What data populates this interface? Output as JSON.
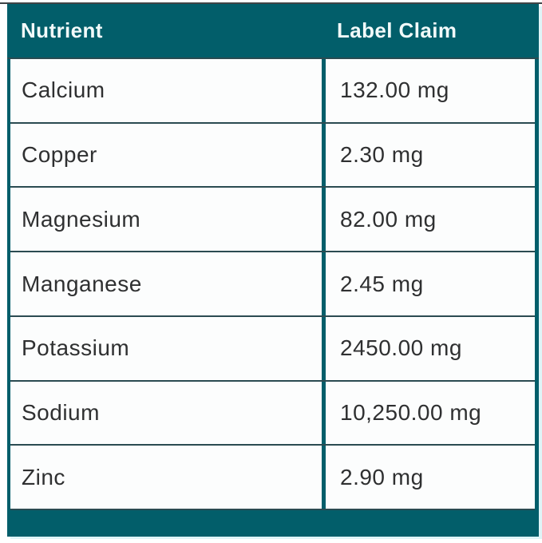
{
  "chart_data": {
    "type": "table",
    "columns": [
      "Nutrient",
      "Label Claim"
    ],
    "rows": [
      [
        "Calcium",
        "132.00 mg"
      ],
      [
        "Copper",
        "2.30 mg"
      ],
      [
        "Magnesium",
        "82.00 mg"
      ],
      [
        "Manganese",
        "2.45 mg"
      ],
      [
        "Potassium",
        "2450.00 mg"
      ],
      [
        "Sodium",
        "10,250.00 mg"
      ],
      [
        "Zinc",
        "2.90 mg"
      ]
    ],
    "units": "mg",
    "layout_hints": {
      "header_position": "top",
      "footer_strip": true,
      "grid": "on"
    }
  },
  "colors": {
    "teal": "#025e6a",
    "row_divider": "#2b4b51",
    "header_text": "#f2fafa",
    "body_text": "#2f3031",
    "row_bg": "#fcfdfd",
    "top_line": "#3f4447",
    "glow": "#dff4f7"
  }
}
